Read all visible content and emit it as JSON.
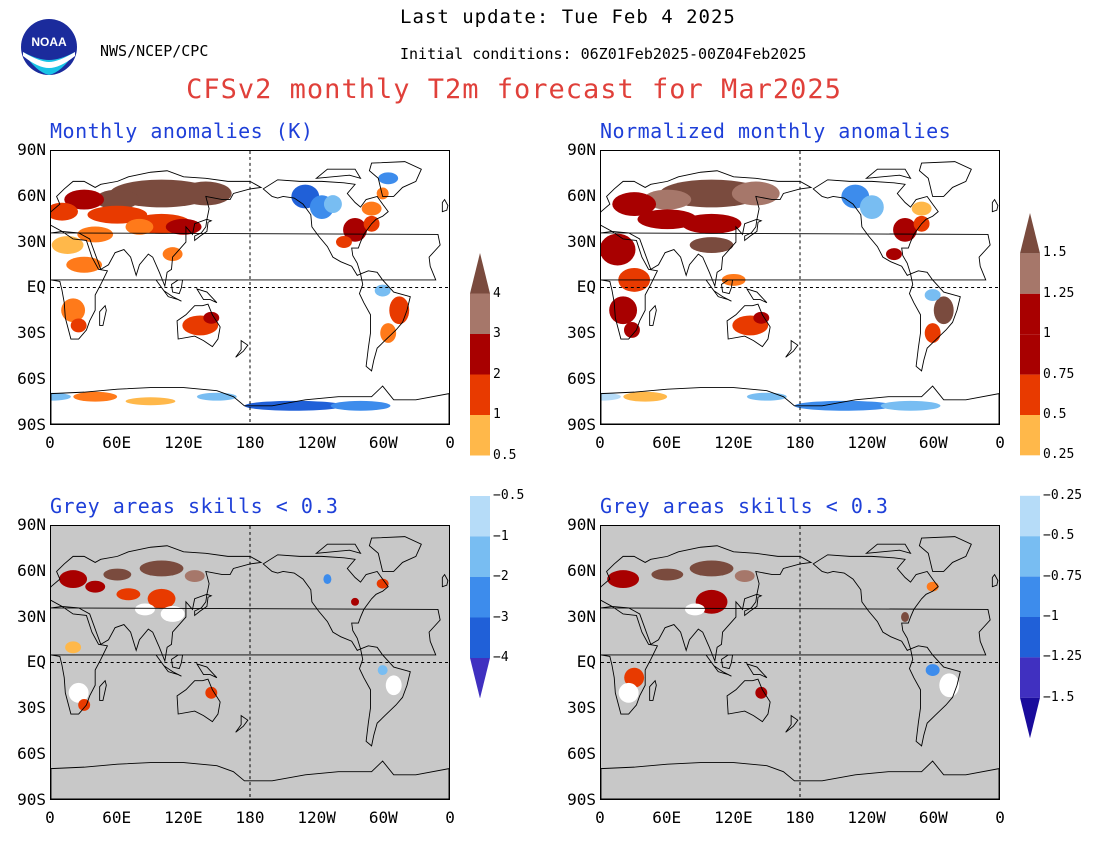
{
  "header": {
    "org": "NWS/NCEP/CPC",
    "last_update": "Last update: Tue Feb 4 2025",
    "initial_conditions": "Initial conditions: 06Z01Feb2025-00Z04Feb2025",
    "title": "CFSv2 monthly T2m forecast for Mar2025",
    "logo_text": "NOAA"
  },
  "panels": {
    "top_left_title": "Monthly anomalies (K)",
    "top_right_title": "Normalized monthly anomalies",
    "bottom_left_title": "Grey areas skills < 0.3",
    "bottom_right_title": "Grey areas skills < 0.3"
  },
  "axes": {
    "lat_labels": [
      "90N",
      "60N",
      "30N",
      "EQ",
      "30S",
      "60S",
      "90S"
    ],
    "lon_labels": [
      "0",
      "60E",
      "120E",
      "180",
      "120W",
      "60W",
      "0"
    ]
  },
  "colorbar_left": {
    "labels": [
      "4",
      "3",
      "2",
      "1",
      "0.5",
      "−0.5",
      "−1",
      "−2",
      "−3",
      "−4"
    ]
  },
  "colorbar_right": {
    "labels": [
      "1.5",
      "1.25",
      "1",
      "0.75",
      "0.5",
      "0.25",
      "−0.25",
      "−0.5",
      "−0.75",
      "−1",
      "−1.25",
      "−1.5"
    ]
  },
  "colors": {
    "c_pos4": "#7a4b3e",
    "c_pos3": "#a6776a",
    "c_pos2": "#a80000",
    "c_pos1": "#e83a00",
    "c_pos05": "#ff7a1a",
    "c_pos025": "#ffb84a",
    "c_neg05": "#b6dcf8",
    "c_neg1": "#78bdf2",
    "c_neg2": "#3d8cec",
    "c_neg3": "#2060d8",
    "c_neg4": "#4030c0",
    "c_neg5": "#1a0c9c",
    "grey_mask": "#c8c8c8",
    "title_red": "#e0403a",
    "title_blue": "#1e3fd8"
  }
}
